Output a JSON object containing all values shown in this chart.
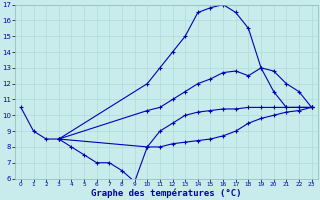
{
  "xlabel": "Graphe des températures (°C)",
  "xlim": [
    -0.5,
    23.5
  ],
  "ylim": [
    6,
    17
  ],
  "xticks": [
    0,
    1,
    2,
    3,
    4,
    5,
    6,
    7,
    8,
    9,
    10,
    11,
    12,
    13,
    14,
    15,
    16,
    17,
    18,
    19,
    20,
    21,
    22,
    23
  ],
  "yticks": [
    6,
    7,
    8,
    9,
    10,
    11,
    12,
    13,
    14,
    15,
    16,
    17
  ],
  "bg_color": "#c8ecec",
  "line_color": "#0000bb",
  "xlabel_color": "#0000bb",
  "lines": [
    {
      "x": [
        0,
        1,
        2,
        3,
        4,
        5,
        6,
        7,
        8,
        9,
        10,
        11,
        12,
        13,
        14,
        15,
        16,
        17,
        18,
        19,
        20,
        21,
        22,
        23
      ],
      "y": [
        10.5,
        9.0,
        8.5,
        8.5,
        8.0,
        7.5,
        7.0,
        7.0,
        6.5,
        5.8,
        8.0,
        9.0,
        9.5,
        10.0,
        10.2,
        10.3,
        10.4,
        10.4,
        10.5,
        10.5,
        10.5,
        10.5,
        10.5,
        10.5
      ]
    },
    {
      "x": [
        3,
        10,
        11,
        12,
        13,
        14,
        15,
        16,
        17,
        18,
        19,
        20,
        21,
        22,
        23
      ],
      "y": [
        8.5,
        12.0,
        13.0,
        14.0,
        15.0,
        16.5,
        16.8,
        17.0,
        16.5,
        15.5,
        13.0,
        11.5,
        10.5,
        10.5,
        10.5
      ]
    },
    {
      "x": [
        3,
        10,
        11,
        12,
        13,
        14,
        15,
        16,
        17,
        18,
        19,
        20,
        21,
        22,
        23
      ],
      "y": [
        8.5,
        10.3,
        10.5,
        11.0,
        11.5,
        12.0,
        12.3,
        12.7,
        12.8,
        12.5,
        13.0,
        12.8,
        12.0,
        11.5,
        10.5
      ]
    },
    {
      "x": [
        3,
        10,
        11,
        12,
        13,
        14,
        15,
        16,
        17,
        18,
        19,
        20,
        21,
        22,
        23
      ],
      "y": [
        8.5,
        8.0,
        8.0,
        8.2,
        8.3,
        8.4,
        8.5,
        8.7,
        9.0,
        9.5,
        9.8,
        10.0,
        10.2,
        10.3,
        10.5
      ]
    }
  ]
}
